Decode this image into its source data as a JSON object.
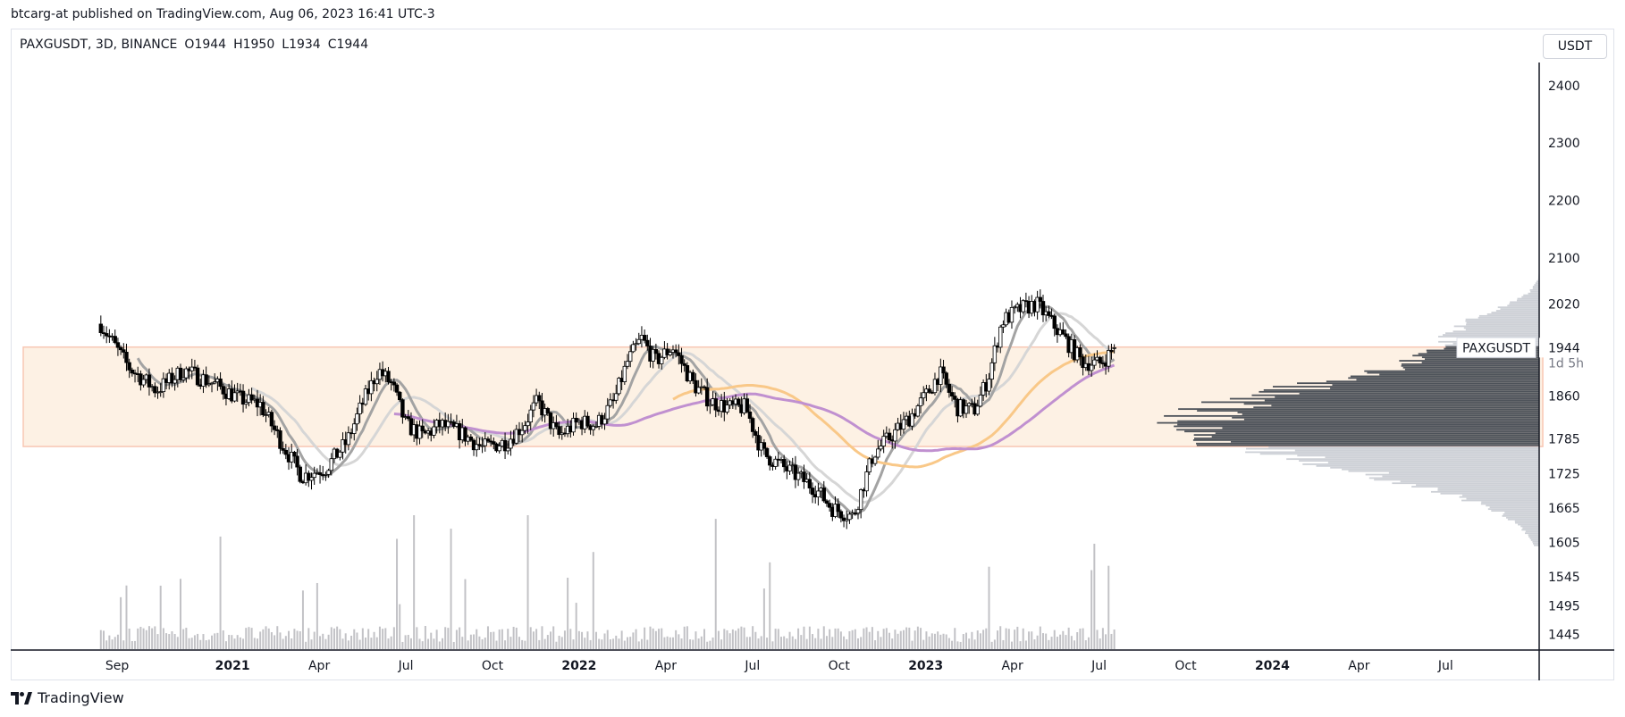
{
  "header": {
    "published": "btcarg-at published on TradingView.com, Aug 06, 2023 16:41 UTC-3"
  },
  "legend": {
    "symbol": "PAXGUSDT, 3D, BINANCE",
    "open_label": "O",
    "open": "1944",
    "high_label": "H",
    "high": "1950",
    "low_label": "L",
    "low": "1934",
    "close_label": "C",
    "close": "1944"
  },
  "currency_button": "USDT",
  "price_tag": {
    "symbol": "PAXGUSDT",
    "price": "1944",
    "countdown": "1d 5h"
  },
  "footer": {
    "brand": "TradingView"
  },
  "colors": {
    "candle": "#000000",
    "zone_fill": "#fdf1e4",
    "zone_border": "#f8c7b4",
    "ma_dark": "#a3a3a3",
    "ma_light": "#d6d6d6",
    "ma_purple": "#c090d0",
    "ma_orange": "#f9c888",
    "volume": "#c2c2c6",
    "profile_dark": "#454a52",
    "profile_light": "#b8bcc4"
  },
  "chart_data": {
    "type": "candlestick",
    "interval": "3D",
    "y_ticks": [
      2400,
      2300,
      2200,
      2100,
      2020,
      1944,
      1860,
      1785,
      1725,
      1665,
      1605,
      1545,
      1495,
      1445
    ],
    "x_ticks": [
      {
        "label": "Sep",
        "bold": false,
        "t": 2020.667
      },
      {
        "label": "2021",
        "bold": true,
        "t": 2021.0
      },
      {
        "label": "Apr",
        "bold": false,
        "t": 2021.25
      },
      {
        "label": "Jul",
        "bold": false,
        "t": 2021.5
      },
      {
        "label": "Oct",
        "bold": false,
        "t": 2021.75
      },
      {
        "label": "2022",
        "bold": true,
        "t": 2022.0
      },
      {
        "label": "Apr",
        "bold": false,
        "t": 2022.25
      },
      {
        "label": "Jul",
        "bold": false,
        "t": 2022.5
      },
      {
        "label": "Oct",
        "bold": false,
        "t": 2022.75
      },
      {
        "label": "2023",
        "bold": true,
        "t": 2023.0
      },
      {
        "label": "Apr",
        "bold": false,
        "t": 2023.25
      },
      {
        "label": "Jul",
        "bold": false,
        "t": 2023.5
      },
      {
        "label": "Oct",
        "bold": false,
        "t": 2023.75
      },
      {
        "label": "2024",
        "bold": true,
        "t": 2024.0
      },
      {
        "label": "Apr",
        "bold": false,
        "t": 2024.25
      },
      {
        "label": "Jul",
        "bold": false,
        "t": 2024.5
      }
    ],
    "price_path": [
      [
        2020.62,
        1985
      ],
      [
        2020.7,
        1910
      ],
      [
        2020.78,
        1870
      ],
      [
        2020.86,
        1905
      ],
      [
        2020.95,
        1880
      ],
      [
        2021.02,
        1855
      ],
      [
        2021.08,
        1845
      ],
      [
        2021.14,
        1780
      ],
      [
        2021.2,
        1720
      ],
      [
        2021.27,
        1735
      ],
      [
        2021.33,
        1780
      ],
      [
        2021.37,
        1840
      ],
      [
        2021.42,
        1905
      ],
      [
        2021.46,
        1880
      ],
      [
        2021.5,
        1810
      ],
      [
        2021.55,
        1790
      ],
      [
        2021.6,
        1810
      ],
      [
        2021.66,
        1795
      ],
      [
        2021.72,
        1770
      ],
      [
        2021.79,
        1780
      ],
      [
        2021.84,
        1810
      ],
      [
        2021.88,
        1850
      ],
      [
        2021.94,
        1790
      ],
      [
        2022.0,
        1815
      ],
      [
        2022.05,
        1810
      ],
      [
        2022.1,
        1850
      ],
      [
        2022.14,
        1920
      ],
      [
        2022.18,
        1960
      ],
      [
        2022.22,
        1920
      ],
      [
        2022.27,
        1945
      ],
      [
        2022.33,
        1880
      ],
      [
        2022.38,
        1850
      ],
      [
        2022.43,
        1840
      ],
      [
        2022.48,
        1840
      ],
      [
        2022.53,
        1760
      ],
      [
        2022.58,
        1740
      ],
      [
        2022.63,
        1720
      ],
      [
        2022.68,
        1700
      ],
      [
        2022.73,
        1665
      ],
      [
        2022.79,
        1650
      ],
      [
        2022.85,
        1760
      ],
      [
        2022.9,
        1790
      ],
      [
        2022.95,
        1820
      ],
      [
        2023.0,
        1860
      ],
      [
        2023.04,
        1900
      ],
      [
        2023.09,
        1840
      ],
      [
        2023.14,
        1835
      ],
      [
        2023.18,
        1890
      ],
      [
        2023.22,
        1990
      ],
      [
        2023.27,
        2010
      ],
      [
        2023.32,
        2020
      ],
      [
        2023.36,
        1990
      ],
      [
        2023.4,
        1960
      ],
      [
        2023.45,
        1920
      ],
      [
        2023.5,
        1915
      ],
      [
        2023.55,
        1944
      ]
    ],
    "y_range": [
      1418,
      2440
    ],
    "t_range": [
      2020.36,
      2024.77
    ],
    "horizontal_zone": {
      "top": 1945,
      "bottom": 1772
    },
    "volume_profile": {
      "poc": 1812,
      "value_area": [
        1772,
        1945
      ]
    }
  }
}
